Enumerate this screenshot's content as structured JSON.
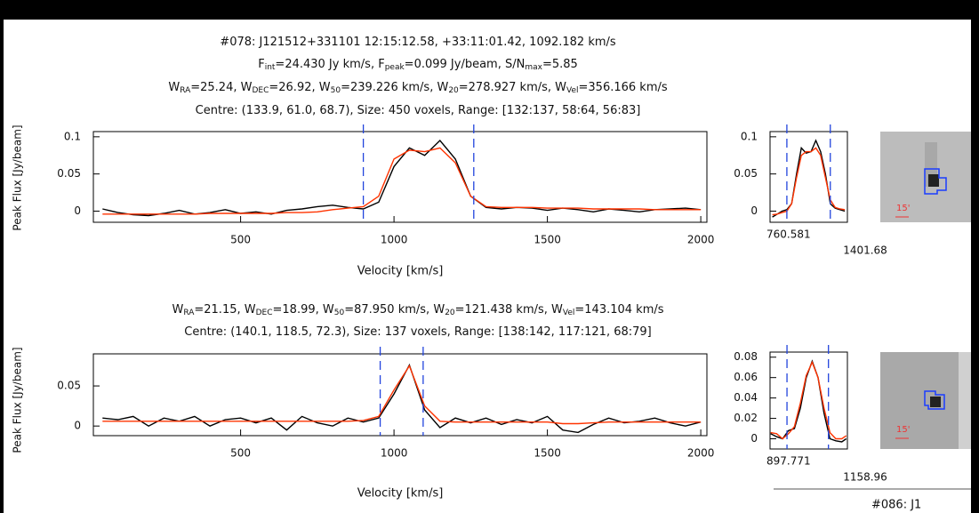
{
  "panels": [
    {
      "lines": [
        [
          {
            "text": "#078: J121512+331101    12:15:12.58, +33:11:01.42, 1092.182 km/s"
          }
        ],
        [
          {
            "text": "F"
          },
          {
            "sub": "int"
          },
          {
            "text": "=24.430 Jy km/s, F"
          },
          {
            "sub": "peak"
          },
          {
            "text": "=0.099 Jy/beam, S/N"
          },
          {
            "sub": "max"
          },
          {
            "text": "=5.85"
          }
        ],
        [
          {
            "text": "W"
          },
          {
            "sub": "RA"
          },
          {
            "text": "=25.24, W"
          },
          {
            "sub": "DEC"
          },
          {
            "text": "=26.92, W"
          },
          {
            "sub": "50"
          },
          {
            "text": "=239.226 km/s, W"
          },
          {
            "sub": "20"
          },
          {
            "text": "=278.927 km/s, W"
          },
          {
            "sub": "Vel"
          },
          {
            "text": "=356.166 km/s"
          }
        ],
        [
          {
            "text": "Centre: (133.9, 61.0, 68.7), Size: 450 voxels,  Range: [132:137, 58:64, 56:83]"
          }
        ]
      ],
      "ylabel": "Peak Flux [Jy/beam]",
      "xlabel": "Velocity [km/s]",
      "scale": "15'"
    },
    {
      "lines": [
        [
          {
            "text": "W"
          },
          {
            "sub": "RA"
          },
          {
            "text": "=21.15, W"
          },
          {
            "sub": "DEC"
          },
          {
            "text": "=18.99, W"
          },
          {
            "sub": "50"
          },
          {
            "text": "=87.950 km/s, W"
          },
          {
            "sub": "20"
          },
          {
            "text": "=121.438 km/s, W"
          },
          {
            "sub": "Vel"
          },
          {
            "text": "=143.104 km/s"
          }
        ],
        [
          {
            "text": "Centre: (140.1, 118.5, 72.3), Size: 137 voxels,  Range: [138:142, 117:121, 68:79]"
          }
        ]
      ],
      "ylabel": "Peak Flux [Jy/beam]",
      "xlabel": "Velocity [km/s]",
      "scale": "15'"
    }
  ],
  "next_title": "#086: J1",
  "chart_data": [
    {
      "type": "line",
      "xlim": [
        20,
        2020
      ],
      "ylim": [
        -0.015,
        0.107
      ],
      "xticks": [
        500,
        1000,
        1500,
        2000
      ],
      "yticks": [
        0,
        0.05,
        0.1
      ],
      "markers": [
        900,
        1260
      ],
      "marker_color": "#2244dd",
      "x": [
        50,
        100,
        150,
        200,
        250,
        300,
        350,
        400,
        450,
        500,
        550,
        600,
        650,
        700,
        750,
        800,
        850,
        900,
        950,
        1000,
        1050,
        1100,
        1150,
        1200,
        1250,
        1300,
        1350,
        1400,
        1450,
        1500,
        1550,
        1600,
        1650,
        1700,
        1750,
        1800,
        1850,
        1900,
        1950,
        2000
      ],
      "series": [
        {
          "color": "#000000",
          "values": [
            0.003,
            -0.002,
            -0.005,
            -0.006,
            -0.003,
            0.001,
            -0.004,
            -0.002,
            0.002,
            -0.003,
            -0.001,
            -0.004,
            0.001,
            0.003,
            0.006,
            0.008,
            0.005,
            0.003,
            0.012,
            0.06,
            0.085,
            0.075,
            0.095,
            0.07,
            0.02,
            0.005,
            0.003,
            0.005,
            0.004,
            0.001,
            0.004,
            0.002,
            -0.001,
            0.003,
            0.001,
            -0.001,
            0.002,
            0.003,
            0.004,
            0.002
          ]
        },
        {
          "color": "#ff3300",
          "values": [
            -0.004,
            -0.004,
            -0.004,
            -0.004,
            -0.004,
            -0.004,
            -0.004,
            -0.003,
            -0.003,
            -0.003,
            -0.003,
            -0.003,
            -0.002,
            -0.002,
            -0.001,
            0.002,
            0.004,
            0.006,
            0.02,
            0.07,
            0.082,
            0.08,
            0.085,
            0.065,
            0.02,
            0.006,
            0.005,
            0.005,
            0.005,
            0.004,
            0.004,
            0.004,
            0.003,
            0.003,
            0.003,
            0.003,
            0.002,
            0.002,
            0.002,
            0.002
          ]
        }
      ]
    },
    {
      "type": "line",
      "xlim": [
        760.581,
        1401.68
      ],
      "ylim": [
        -0.015,
        0.107
      ],
      "xticks": [
        760.581,
        1401.68
      ],
      "yticks": [
        0,
        0.05,
        0.1
      ],
      "markers": [
        900,
        1260
      ],
      "marker_color": "#2244dd",
      "x": [
        780,
        820,
        860,
        900,
        940,
        980,
        1020,
        1060,
        1100,
        1140,
        1180,
        1220,
        1260,
        1300,
        1340,
        1380
      ],
      "series": [
        {
          "color": "#000000",
          "values": [
            -0.008,
            -0.004,
            0.0,
            0.002,
            0.01,
            0.05,
            0.085,
            0.078,
            0.08,
            0.095,
            0.08,
            0.05,
            0.01,
            0.004,
            0.002,
            0.0
          ]
        },
        {
          "color": "#ff3300",
          "values": [
            -0.005,
            -0.004,
            -0.002,
            0.0,
            0.01,
            0.045,
            0.075,
            0.08,
            0.08,
            0.085,
            0.075,
            0.045,
            0.015,
            0.005,
            0.003,
            0.002
          ]
        }
      ]
    },
    {
      "type": "line",
      "xlim": [
        20,
        2020
      ],
      "ylim": [
        -0.012,
        0.09
      ],
      "xticks": [
        500,
        1000,
        1500,
        2000
      ],
      "yticks": [
        0,
        0.05
      ],
      "markers": [
        955,
        1095
      ],
      "marker_color": "#2244dd",
      "x": [
        50,
        100,
        150,
        200,
        250,
        300,
        350,
        400,
        450,
        500,
        550,
        600,
        650,
        700,
        750,
        800,
        850,
        900,
        950,
        1000,
        1050,
        1100,
        1150,
        1200,
        1250,
        1300,
        1350,
        1400,
        1450,
        1500,
        1550,
        1600,
        1650,
        1700,
        1750,
        1800,
        1850,
        1900,
        1950,
        2000
      ],
      "series": [
        {
          "color": "#000000",
          "values": [
            0.01,
            0.008,
            0.012,
            0.0,
            0.01,
            0.006,
            0.012,
            0.0,
            0.008,
            0.01,
            0.004,
            0.01,
            -0.005,
            0.012,
            0.004,
            0.0,
            0.01,
            0.005,
            0.01,
            0.04,
            0.076,
            0.02,
            -0.002,
            0.01,
            0.004,
            0.01,
            0.002,
            0.008,
            0.004,
            0.012,
            -0.005,
            -0.008,
            0.002,
            0.01,
            0.004,
            0.006,
            0.01,
            0.004,
            0.0,
            0.005
          ]
        },
        {
          "color": "#ff3300",
          "values": [
            0.006,
            0.006,
            0.006,
            0.006,
            0.006,
            0.006,
            0.006,
            0.006,
            0.006,
            0.006,
            0.006,
            0.006,
            0.006,
            0.006,
            0.006,
            0.006,
            0.006,
            0.007,
            0.012,
            0.045,
            0.075,
            0.025,
            0.006,
            0.005,
            0.005,
            0.005,
            0.005,
            0.005,
            0.005,
            0.005,
            0.003,
            0.003,
            0.004,
            0.005,
            0.005,
            0.005,
            0.005,
            0.005,
            0.005,
            0.005
          ]
        }
      ]
    },
    {
      "type": "line",
      "xlim": [
        897.771,
        1158.96
      ],
      "ylim": [
        -0.01,
        0.085
      ],
      "xticks": [
        897.771,
        1158.96
      ],
      "yticks": [
        0,
        0.02,
        0.04,
        0.06,
        0.08
      ],
      "markers": [
        955,
        1095
      ],
      "marker_color": "#2244dd",
      "x": [
        900,
        920,
        940,
        960,
        980,
        1000,
        1020,
        1040,
        1060,
        1080,
        1100,
        1120,
        1140,
        1155
      ],
      "series": [
        {
          "color": "#000000",
          "values": [
            0.005,
            0.002,
            0.0,
            0.008,
            0.01,
            0.03,
            0.06,
            0.076,
            0.06,
            0.025,
            0.0,
            -0.002,
            -0.003,
            0.0
          ]
        },
        {
          "color": "#ff3300",
          "values": [
            0.006,
            0.005,
            0.0,
            0.005,
            0.012,
            0.035,
            0.062,
            0.075,
            0.06,
            0.03,
            0.006,
            0.0,
            0.0,
            0.003
          ]
        }
      ]
    }
  ]
}
